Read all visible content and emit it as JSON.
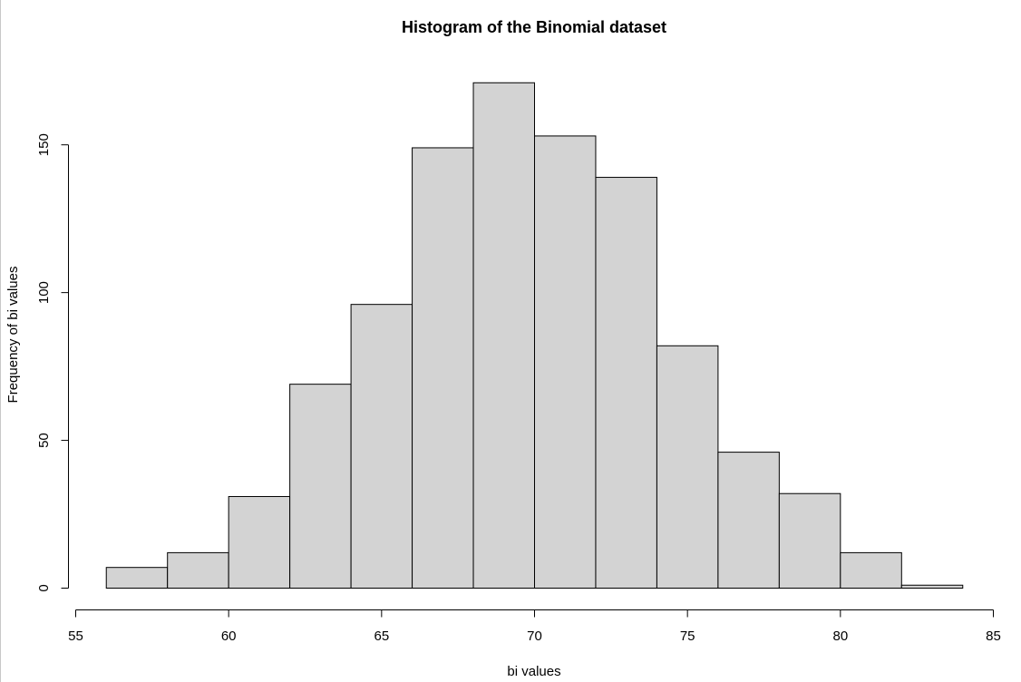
{
  "chart_data": {
    "type": "bar",
    "title": "Histogram of the Binomial dataset",
    "xlabel": "bi values",
    "ylabel": "Frequency of bi values",
    "bins": [
      {
        "from": 56,
        "to": 58,
        "value": 7
      },
      {
        "from": 58,
        "to": 60,
        "value": 12
      },
      {
        "from": 60,
        "to": 62,
        "value": 31
      },
      {
        "from": 62,
        "to": 64,
        "value": 69
      },
      {
        "from": 64,
        "to": 66,
        "value": 96
      },
      {
        "from": 66,
        "to": 68,
        "value": 149
      },
      {
        "from": 68,
        "to": 70,
        "value": 171
      },
      {
        "from": 70,
        "to": 72,
        "value": 153
      },
      {
        "from": 72,
        "to": 74,
        "value": 139
      },
      {
        "from": 74,
        "to": 76,
        "value": 82
      },
      {
        "from": 76,
        "to": 78,
        "value": 46
      },
      {
        "from": 78,
        "to": 80,
        "value": 32
      },
      {
        "from": 80,
        "to": 82,
        "value": 12
      },
      {
        "from": 82,
        "to": 84,
        "value": 1
      }
    ],
    "xticks": [
      "55",
      "60",
      "65",
      "70",
      "75",
      "80",
      "85"
    ],
    "yticks": [
      "0",
      "50",
      "100",
      "150"
    ],
    "xlim": [
      55,
      85
    ],
    "ylim": [
      0,
      150
    ],
    "bar_color": "#d3d3d3",
    "grid": false,
    "legend": "none"
  }
}
